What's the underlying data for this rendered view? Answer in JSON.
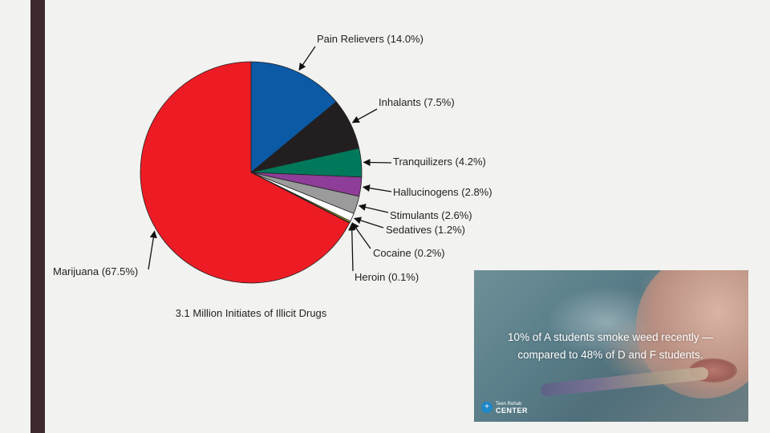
{
  "chart_data": {
    "type": "pie",
    "title": "3.1 Million Initiates of Illicit Drugs",
    "slices": [
      {
        "label": "Pain Relievers (14.0%)",
        "value": 14.0,
        "color": "#0b5aa6"
      },
      {
        "label": "Inhalants (7.5%)",
        "value": 7.5,
        "color": "#231f20"
      },
      {
        "label": "Tranquilizers (4.2%)",
        "value": 4.2,
        "color": "#00795a"
      },
      {
        "label": "Hallucinogens (2.8%)",
        "value": 2.8,
        "color": "#8e3d98"
      },
      {
        "label": "Stimulants (2.6%)",
        "value": 2.6,
        "color": "#9b9b9b"
      },
      {
        "label": "Sedatives (1.2%)",
        "value": 1.2,
        "color": "#ffffff"
      },
      {
        "label": "Cocaine (0.2%)",
        "value": 0.2,
        "color": "#d7df23"
      },
      {
        "label": "Heroin (0.1%)",
        "value": 0.1,
        "color": "#3a7d2c"
      },
      {
        "label": "Marijuana (67.5%)",
        "value": 67.5,
        "color": "#ed1c24"
      }
    ]
  },
  "photo": {
    "caption_line1": "10% of A students smoke weed recently —",
    "caption_line2": "compared to 48% of D and F students.",
    "logo_small": "Teen Rehab",
    "logo_big": "CENTER",
    "logo_icon": "+"
  },
  "colors": {
    "background": "#f2f2f0",
    "left_bar": "#3d2a2c"
  }
}
